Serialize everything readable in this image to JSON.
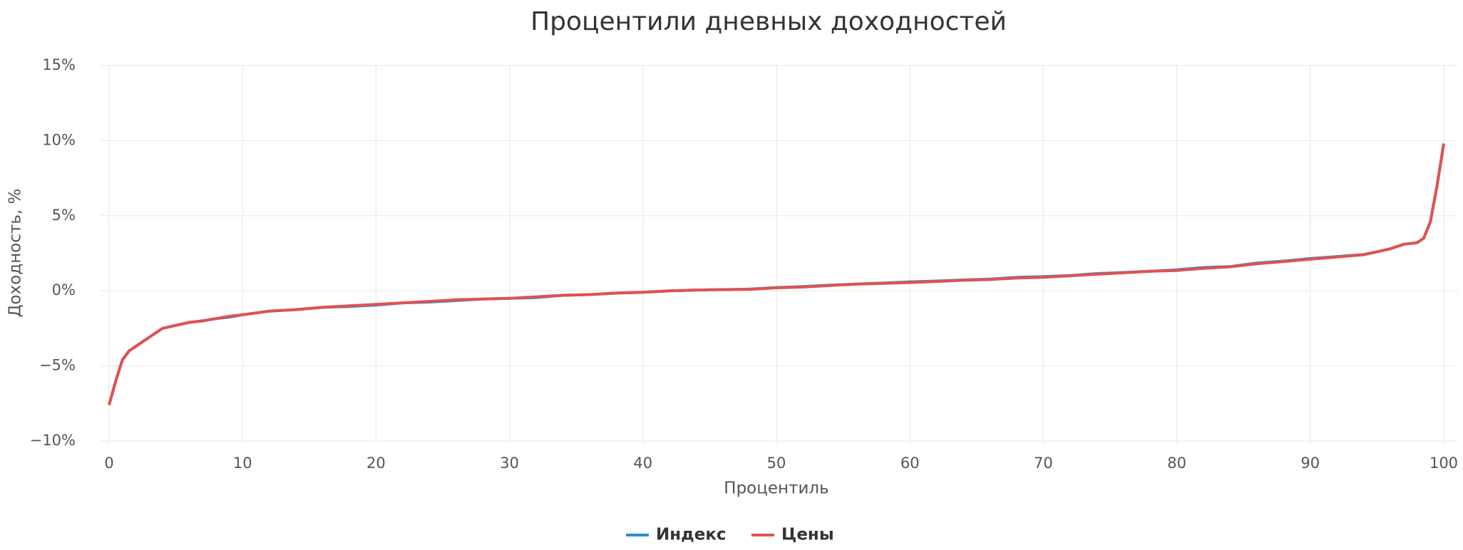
{
  "chart_data": {
    "type": "line",
    "title": "Процентили дневных доходностей",
    "x_label": "Процентиль",
    "y_label": "Доходность, %",
    "x": [
      0,
      0.5,
      1,
      1.5,
      2,
      3,
      4,
      5,
      6,
      7,
      8,
      9,
      10,
      12,
      14,
      16,
      18,
      20,
      22,
      24,
      26,
      28,
      30,
      32,
      34,
      36,
      38,
      40,
      42,
      44,
      46,
      48,
      50,
      52,
      54,
      56,
      58,
      60,
      62,
      64,
      66,
      68,
      70,
      72,
      74,
      76,
      78,
      80,
      82,
      84,
      86,
      88,
      90,
      92,
      94,
      95,
      96,
      97,
      98,
      98.5,
      99,
      99.5,
      100
    ],
    "series": [
      {
        "name": "Индекс",
        "color": "#2b8fd1",
        "values": [
          -7.6,
          -6.0,
          -4.6,
          -4.0,
          -3.7,
          -3.1,
          -2.5,
          -2.3,
          -2.1,
          -2.0,
          -1.85,
          -1.75,
          -1.6,
          -1.35,
          -1.25,
          -1.1,
          -1.05,
          -0.95,
          -0.8,
          -0.75,
          -0.65,
          -0.55,
          -0.5,
          -0.45,
          -0.3,
          -0.25,
          -0.15,
          -0.1,
          0.0,
          0.05,
          0.08,
          0.12,
          0.22,
          0.28,
          0.38,
          0.45,
          0.52,
          0.6,
          0.65,
          0.72,
          0.78,
          0.9,
          0.95,
          1.02,
          1.15,
          1.22,
          1.3,
          1.4,
          1.55,
          1.62,
          1.85,
          1.98,
          2.15,
          2.28,
          2.42,
          2.6,
          2.8,
          3.1,
          3.2,
          3.5,
          4.6,
          7.0,
          9.8
        ]
      },
      {
        "name": "Цены",
        "color": "#e05252",
        "values": [
          -7.6,
          -6.0,
          -4.6,
          -4.0,
          -3.7,
          -3.1,
          -2.5,
          -2.3,
          -2.1,
          -2.0,
          -1.85,
          -1.7,
          -1.6,
          -1.35,
          -1.25,
          -1.1,
          -1.0,
          -0.9,
          -0.8,
          -0.7,
          -0.6,
          -0.55,
          -0.5,
          -0.4,
          -0.3,
          -0.25,
          -0.15,
          -0.1,
          0.0,
          0.05,
          0.08,
          0.1,
          0.2,
          0.25,
          0.35,
          0.45,
          0.5,
          0.55,
          0.62,
          0.7,
          0.75,
          0.85,
          0.9,
          1.0,
          1.1,
          1.2,
          1.3,
          1.35,
          1.5,
          1.6,
          1.8,
          1.95,
          2.1,
          2.25,
          2.4,
          2.6,
          2.8,
          3.1,
          3.2,
          3.5,
          4.6,
          7.0,
          9.8
        ]
      }
    ],
    "xlim": [
      0,
      100
    ],
    "xticks": [
      0,
      10,
      20,
      30,
      40,
      50,
      60,
      70,
      80,
      90,
      100
    ],
    "ylim": [
      -10,
      15
    ],
    "yticks": [
      {
        "value": -10,
        "label": "−10%"
      },
      {
        "value": -5,
        "label": "−5%"
      },
      {
        "value": 0,
        "label": "0%"
      },
      {
        "value": 5,
        "label": "5%"
      },
      {
        "value": 10,
        "label": "10%"
      },
      {
        "value": 15,
        "label": "15%"
      }
    ],
    "grid": true,
    "legend": "bottom"
  }
}
